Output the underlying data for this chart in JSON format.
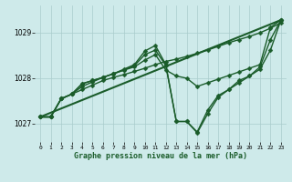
{
  "title": "Graphe pression niveau de la mer (hPa)",
  "bg_color": "#ceeaea",
  "grid_color": "#aacccc",
  "line_color": "#1a5c2a",
  "xlim": [
    -0.5,
    23.5
  ],
  "ylim": [
    1026.6,
    1029.6
  ],
  "yticks": [
    1027,
    1028,
    1029
  ],
  "xtick_labels": [
    "0",
    "1",
    "2",
    "3",
    "4",
    "5",
    "6",
    "7",
    "8",
    "9",
    "10",
    "11",
    "12",
    "13",
    "14",
    "15",
    "16",
    "17",
    "18",
    "19",
    "20",
    "21",
    "22",
    "23"
  ],
  "trend_line": {
    "x": [
      0,
      23
    ],
    "y": [
      1027.15,
      1029.28
    ]
  },
  "series": [
    {
      "x": [
        0,
        1,
        2,
        3,
        4,
        5,
        6,
        7,
        8,
        9,
        10,
        11,
        12,
        13,
        14,
        15,
        16,
        17,
        18,
        19,
        20,
        21,
        22,
        23
      ],
      "y": [
        1027.15,
        1027.15,
        1027.55,
        1027.65,
        1027.75,
        1027.85,
        1027.95,
        1028.02,
        1028.08,
        1028.15,
        1028.22,
        1028.3,
        1028.37,
        1028.42,
        1028.48,
        1028.55,
        1028.62,
        1028.7,
        1028.78,
        1028.85,
        1028.92,
        1029.0,
        1029.1,
        1029.22
      ],
      "marker": "D",
      "markersize": 2.5,
      "linewidth": 1.0
    },
    {
      "x": [
        0,
        1,
        2,
        3,
        4,
        5,
        6,
        7,
        8,
        9,
        10,
        11,
        12,
        13,
        14,
        15,
        16,
        17,
        18,
        19,
        20,
        21,
        22,
        23
      ],
      "y": [
        1027.15,
        1027.15,
        1027.55,
        1027.65,
        1027.82,
        1027.92,
        1028.02,
        1028.1,
        1028.18,
        1028.25,
        1028.4,
        1028.52,
        1028.18,
        1028.05,
        1028.0,
        1027.82,
        1027.9,
        1027.98,
        1028.06,
        1028.14,
        1028.22,
        1028.3,
        1029.12,
        1029.28
      ],
      "marker": "D",
      "markersize": 2.5,
      "linewidth": 1.0
    },
    {
      "x": [
        0,
        1,
        2,
        3,
        4,
        5,
        6,
        7,
        8,
        9,
        10,
        11,
        12,
        13,
        14,
        15,
        16,
        17,
        18,
        19,
        20,
        21,
        22,
        23
      ],
      "y": [
        1027.15,
        1027.15,
        1027.55,
        1027.65,
        1027.88,
        1027.95,
        1028.02,
        1028.1,
        1028.18,
        1028.28,
        1028.52,
        1028.62,
        1028.28,
        1027.05,
        1027.05,
        1026.82,
        1027.3,
        1027.62,
        1027.75,
        1027.95,
        1028.05,
        1028.2,
        1028.62,
        1029.28
      ],
      "marker": "D",
      "markersize": 2.5,
      "linewidth": 1.0
    },
    {
      "x": [
        0,
        1,
        2,
        3,
        4,
        5,
        6,
        7,
        8,
        9,
        10,
        11,
        12,
        13,
        14,
        15,
        16,
        17,
        18,
        19,
        20,
        21,
        22,
        23
      ],
      "y": [
        1027.15,
        1027.15,
        1027.55,
        1027.65,
        1027.88,
        1027.95,
        1028.02,
        1028.1,
        1028.2,
        1028.3,
        1028.6,
        1028.72,
        1028.3,
        1027.05,
        1027.05,
        1026.8,
        1027.22,
        1027.58,
        1027.75,
        1027.9,
        1028.05,
        1028.25,
        1028.85,
        1029.28
      ],
      "marker": "D",
      "markersize": 2.5,
      "linewidth": 1.0
    }
  ]
}
